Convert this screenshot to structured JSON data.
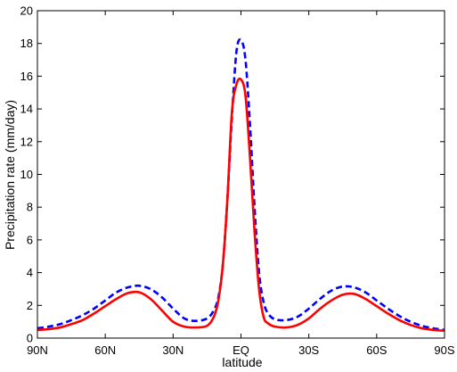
{
  "chart_data": {
    "type": "line",
    "xlabel": "latitude",
    "ylabel": "Precipitation rate (mm/day)",
    "xlim": [
      -90,
      90
    ],
    "ylim": [
      0,
      20
    ],
    "x_ticks": [
      -90,
      -60,
      -30,
      0,
      30,
      60,
      90
    ],
    "x_tick_labels": [
      "90N",
      "60N",
      "30N",
      "EQ",
      "30S",
      "60S",
      "90S"
    ],
    "y_ticks": [
      0,
      2,
      4,
      6,
      8,
      10,
      12,
      14,
      16,
      18,
      20
    ],
    "y_tick_labels": [
      "0",
      "2",
      "4",
      "6",
      "8",
      "10",
      "12",
      "14",
      "16",
      "18",
      "20"
    ],
    "grid": false,
    "series": [
      {
        "style": "dashed",
        "color": "#0000ff",
        "x": [
          -90,
          -85,
          -80,
          -75,
          -70,
          -65,
          -60,
          -55,
          -50,
          -45,
          -40,
          -35,
          -30,
          -25,
          -20,
          -15,
          -12,
          -10,
          -8,
          -6,
          -4,
          -2,
          0,
          2,
          4,
          6,
          8,
          10,
          12,
          15,
          20,
          25,
          30,
          35,
          40,
          45,
          50,
          55,
          60,
          65,
          70,
          75,
          80,
          85,
          90
        ],
        "y": [
          0.6,
          0.7,
          0.85,
          1.1,
          1.4,
          1.8,
          2.3,
          2.8,
          3.1,
          3.2,
          3.0,
          2.5,
          1.8,
          1.2,
          1.05,
          1.2,
          1.7,
          2.5,
          4.5,
          8.5,
          13.5,
          17.5,
          18.2,
          17.0,
          13.0,
          8.0,
          4.0,
          2.2,
          1.5,
          1.15,
          1.1,
          1.3,
          1.8,
          2.4,
          2.9,
          3.15,
          3.1,
          2.8,
          2.3,
          1.8,
          1.35,
          1.0,
          0.75,
          0.6,
          0.5
        ]
      },
      {
        "style": "solid",
        "color": "#ff0000",
        "x": [
          -90,
          -85,
          -80,
          -75,
          -70,
          -65,
          -60,
          -55,
          -50,
          -45,
          -40,
          -35,
          -30,
          -25,
          -20,
          -15,
          -12,
          -10,
          -8,
          -6,
          -4,
          -2,
          0,
          2,
          4,
          6,
          8,
          10,
          12,
          15,
          20,
          25,
          30,
          35,
          40,
          45,
          50,
          55,
          60,
          65,
          70,
          75,
          80,
          85,
          90
        ],
        "y": [
          0.5,
          0.55,
          0.65,
          0.85,
          1.1,
          1.5,
          1.95,
          2.4,
          2.75,
          2.8,
          2.4,
          1.7,
          1.0,
          0.7,
          0.65,
          0.75,
          1.3,
          2.3,
          4.5,
          8.5,
          13.8,
          15.5,
          15.8,
          14.8,
          11.0,
          6.5,
          3.0,
          1.3,
          0.9,
          0.7,
          0.65,
          0.8,
          1.2,
          1.8,
          2.3,
          2.65,
          2.7,
          2.4,
          1.95,
          1.5,
          1.1,
          0.8,
          0.6,
          0.5,
          0.45
        ]
      }
    ]
  }
}
